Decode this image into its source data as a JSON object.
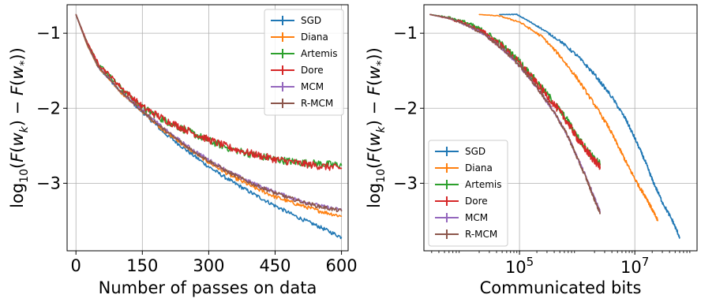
{
  "chart_data": [
    {
      "type": "line",
      "xlabel": "Number of passes on data",
      "ylabel": "log10(F(w_k) − F(w_*))",
      "xscale": "linear",
      "xlim": [
        -20,
        615
      ],
      "ylim": [
        -3.9,
        -0.62
      ],
      "xticks": [
        0,
        150,
        300,
        450,
        600
      ],
      "xtick_labels": [
        "0",
        "150",
        "300",
        "450",
        "600"
      ],
      "yticks": [
        -1,
        -2,
        -3
      ],
      "ytick_labels": [
        "−1",
        "−2",
        "−3"
      ],
      "grid": true,
      "legend_position": "top-right",
      "legend": [
        "SGD",
        "Diana",
        "Artemis",
        "Dore",
        "MCM",
        "R-MCM"
      ],
      "series": [
        {
          "name": "SGD",
          "color": "#1f77b4",
          "x": [
            0,
            25,
            50,
            100,
            150,
            200,
            250,
            300,
            350,
            400,
            450,
            500,
            550,
            600
          ],
          "y": [
            -0.75,
            -1.15,
            -1.45,
            -1.78,
            -2.05,
            -2.33,
            -2.56,
            -2.78,
            -2.97,
            -3.14,
            -3.3,
            -3.45,
            -3.58,
            -3.72
          ]
        },
        {
          "name": "Diana",
          "color": "#ff7f0e",
          "x": [
            0,
            25,
            50,
            100,
            150,
            200,
            250,
            300,
            350,
            400,
            450,
            500,
            550,
            600
          ],
          "y": [
            -0.75,
            -1.15,
            -1.45,
            -1.78,
            -2.04,
            -2.3,
            -2.52,
            -2.72,
            -2.9,
            -3.05,
            -3.18,
            -3.28,
            -3.37,
            -3.44
          ]
        },
        {
          "name": "Artemis",
          "color": "#2ca02c",
          "x": [
            0,
            25,
            50,
            100,
            150,
            200,
            250,
            300,
            350,
            400,
            450,
            500,
            550,
            600
          ],
          "y": [
            -0.75,
            -1.12,
            -1.4,
            -1.72,
            -1.99,
            -2.16,
            -2.3,
            -2.43,
            -2.54,
            -2.62,
            -2.68,
            -2.72,
            -2.74,
            -2.76
          ]
        },
        {
          "name": "Dore",
          "color": "#d62728",
          "x": [
            0,
            25,
            50,
            100,
            150,
            200,
            250,
            300,
            350,
            400,
            450,
            500,
            550,
            600
          ],
          "y": [
            -0.75,
            -1.12,
            -1.4,
            -1.71,
            -1.98,
            -2.15,
            -2.29,
            -2.42,
            -2.53,
            -2.61,
            -2.68,
            -2.73,
            -2.77,
            -2.8
          ]
        },
        {
          "name": "MCM",
          "color": "#9467bd",
          "x": [
            0,
            25,
            50,
            100,
            150,
            200,
            250,
            300,
            350,
            400,
            450,
            500,
            550,
            600
          ],
          "y": [
            -0.75,
            -1.14,
            -1.44,
            -1.77,
            -2.03,
            -2.28,
            -2.5,
            -2.69,
            -2.86,
            -3.0,
            -3.12,
            -3.22,
            -3.3,
            -3.36
          ]
        },
        {
          "name": "R-MCM",
          "color": "#8c564b",
          "x": [
            0,
            25,
            50,
            100,
            150,
            200,
            250,
            300,
            350,
            400,
            450,
            500,
            550,
            600
          ],
          "y": [
            -0.75,
            -1.14,
            -1.44,
            -1.77,
            -2.04,
            -2.29,
            -2.51,
            -2.7,
            -2.87,
            -3.01,
            -3.13,
            -3.23,
            -3.31,
            -3.37
          ]
        }
      ]
    },
    {
      "type": "line",
      "xlabel": "Communicated bits",
      "ylabel": "log10(F(w_k) − F(w_*))",
      "xscale": "log",
      "xlim": [
        2200,
        120000000
      ],
      "ylim": [
        -3.9,
        -0.62
      ],
      "xticks": [
        100000,
        10000000
      ],
      "xtick_labels": [
        "10^5",
        "10^7"
      ],
      "yticks": [
        -1,
        -2,
        -3
      ],
      "ytick_labels": [
        "−1",
        "−2",
        "−3"
      ],
      "grid": true,
      "legend_position": "bottom-left",
      "legend": [
        "SGD",
        "Diana",
        "Artemis",
        "Dore",
        "MCM",
        "R-MCM"
      ],
      "series": [
        {
          "name": "SGD",
          "color": "#1f77b4",
          "x": [
            45000,
            90000,
            200000,
            500000,
            1000000,
            2000000,
            4000000,
            7000000,
            10000000,
            15000000,
            20000000,
            30000000,
            45000000,
            60000000
          ],
          "y": [
            -0.75,
            -0.75,
            -0.9,
            -1.1,
            -1.3,
            -1.55,
            -1.85,
            -2.15,
            -2.4,
            -2.7,
            -2.95,
            -3.25,
            -3.5,
            -3.72
          ]
        },
        {
          "name": "Diana",
          "color": "#ff7f0e",
          "x": [
            20000,
            45000,
            100000,
            250000,
            500000,
            1000000,
            2000000,
            3500000,
            5500000,
            8000000,
            12000000,
            16000000,
            20000000,
            25000000
          ],
          "y": [
            -0.75,
            -0.77,
            -0.85,
            -1.05,
            -1.3,
            -1.6,
            -1.95,
            -2.25,
            -2.55,
            -2.8,
            -3.05,
            -3.2,
            -3.35,
            -3.5
          ]
        },
        {
          "name": "Artemis",
          "color": "#2ca02c",
          "x": [
            2800,
            6000,
            12000,
            25000,
            50000,
            100000,
            200000,
            400000,
            700000,
            1000000,
            1500000,
            2000000,
            2500000
          ],
          "y": [
            -0.75,
            -0.79,
            -0.86,
            -0.98,
            -1.16,
            -1.38,
            -1.65,
            -1.93,
            -2.18,
            -2.38,
            -2.56,
            -2.68,
            -2.74
          ]
        },
        {
          "name": "Dore",
          "color": "#d62728",
          "x": [
            2800,
            6000,
            12000,
            25000,
            50000,
            100000,
            200000,
            400000,
            700000,
            1000000,
            1500000,
            2000000,
            2500000
          ],
          "y": [
            -0.75,
            -0.8,
            -0.88,
            -1.0,
            -1.18,
            -1.4,
            -1.67,
            -1.95,
            -2.2,
            -2.4,
            -2.58,
            -2.7,
            -2.78
          ]
        },
        {
          "name": "MCM",
          "color": "#9467bd",
          "x": [
            2800,
            6000,
            12000,
            25000,
            50000,
            100000,
            200000,
            400000,
            700000,
            1000000,
            1500000,
            2000000,
            2500000
          ],
          "y": [
            -0.75,
            -0.8,
            -0.89,
            -1.02,
            -1.2,
            -1.43,
            -1.72,
            -2.05,
            -2.38,
            -2.65,
            -2.95,
            -3.2,
            -3.38
          ]
        },
        {
          "name": "R-MCM",
          "color": "#8c564b",
          "x": [
            2800,
            6000,
            12000,
            25000,
            50000,
            100000,
            200000,
            400000,
            700000,
            1000000,
            1500000,
            2000000,
            2500000
          ],
          "y": [
            -0.75,
            -0.8,
            -0.89,
            -1.02,
            -1.2,
            -1.43,
            -1.72,
            -2.05,
            -2.38,
            -2.66,
            -2.97,
            -3.22,
            -3.4
          ]
        }
      ]
    }
  ]
}
